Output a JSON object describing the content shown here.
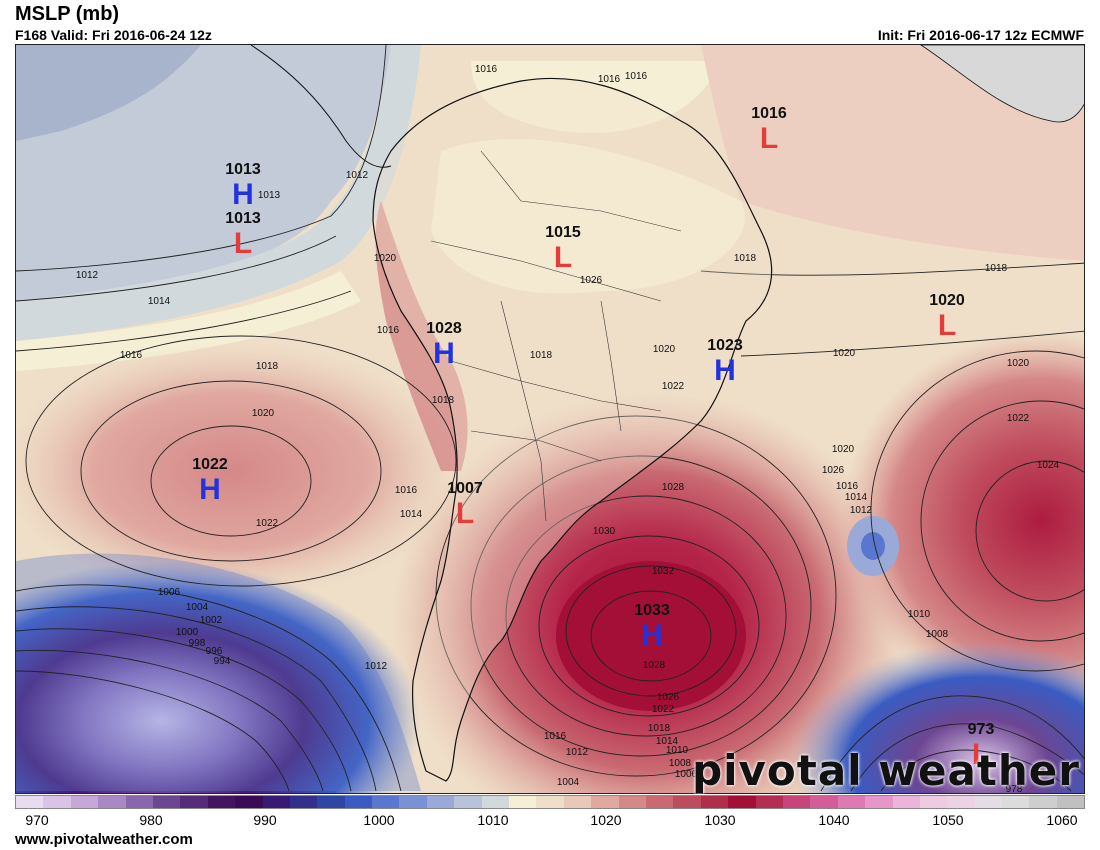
{
  "header": {
    "title": "MSLP (mb)",
    "valid": "F168 Valid: Fri 2016-06-24 12z",
    "init": "Init: Fri 2016-06-17 12z ECMWF"
  },
  "watermark": "pivotal weather",
  "footer": "www.pivotalweather.com",
  "colorbar": {
    "ticks": [
      "970",
      "980",
      "990",
      "1000",
      "1010",
      "1020",
      "1030",
      "1040",
      "1050",
      "1060"
    ],
    "colors": [
      "#e8dcf0",
      "#d9c3e6",
      "#c6a8d8",
      "#a988c4",
      "#8a67ad",
      "#6d4692",
      "#552b7a",
      "#44155f",
      "#3b0c55",
      "#371a74",
      "#33308c",
      "#2e47a5",
      "#3a5cc2",
      "#5a77cf",
      "#7b91d6",
      "#9aa9d8",
      "#b8c2d8",
      "#d2d9dc",
      "#f5f0d5",
      "#efdfc8",
      "#e8c8b8",
      "#e0a8a0",
      "#d58888",
      "#c96a72",
      "#bd4d5e",
      "#b02e4a",
      "#a30f36",
      "#b52c55",
      "#c7457a",
      "#d45c97",
      "#de79b1",
      "#e697c7",
      "#ecb4d8",
      "#efcbe2",
      "#ecd3e4",
      "#e5dde6",
      "#dcdcdc",
      "#cecece",
      "#c0c0c0"
    ]
  },
  "pressure_systems": [
    {
      "type": "H",
      "value": "1013"
    },
    {
      "type": "L",
      "value": "1013"
    },
    {
      "type": "L",
      "value": "1016"
    },
    {
      "type": "L",
      "value": "1015"
    },
    {
      "type": "L",
      "value": "1020"
    },
    {
      "type": "H",
      "value": "1028"
    },
    {
      "type": "H",
      "value": "1023"
    },
    {
      "type": "H",
      "value": "1022"
    },
    {
      "type": "L",
      "value": "1007"
    },
    {
      "type": "H",
      "value": "1033"
    },
    {
      "type": "L",
      "value": "973"
    }
  ],
  "isobar_labels": [
    "1016",
    "1016",
    "1016",
    "1012",
    "1013",
    "1012",
    "1014",
    "1016",
    "1018",
    "1020",
    "1022",
    "1020",
    "1016",
    "1018",
    "1018",
    "1020",
    "1022",
    "1018",
    "1020",
    "1018",
    "1020",
    "1022",
    "1024",
    "1026",
    "1016",
    "1014",
    "1012",
    "1014",
    "1016",
    "1020",
    "1026",
    "1028",
    "1030",
    "1032",
    "1028",
    "1026",
    "1022",
    "1018",
    "1014",
    "1010",
    "1008",
    "1006",
    "1004",
    "1016",
    "1012",
    "1010",
    "1008",
    "1006",
    "1004",
    "1002",
    "1000",
    "998",
    "996",
    "994",
    "1012",
    "978"
  ]
}
